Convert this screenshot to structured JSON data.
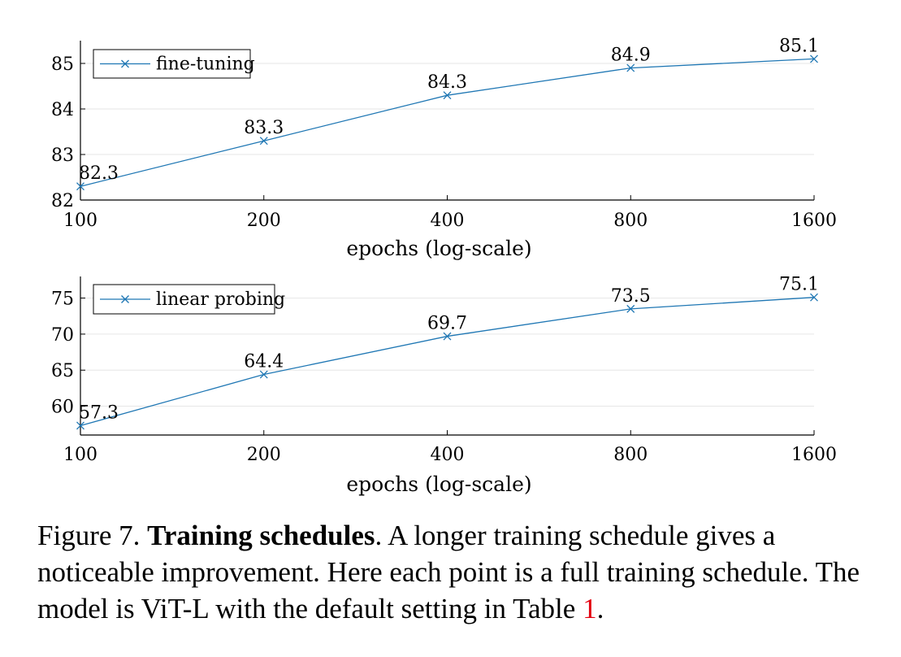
{
  "chart_data": [
    {
      "type": "line",
      "x": [
        100,
        200,
        400,
        800,
        1600
      ],
      "x_ticks": [
        "100",
        "200",
        "400",
        "800",
        "1600"
      ],
      "xscale": "log",
      "xlabel": "epochs (log-scale)",
      "ylabel": "",
      "ylim": [
        82,
        85.5
      ],
      "y_ticks": [
        "82",
        "83",
        "84",
        "85"
      ],
      "grid": "horizontal",
      "legend": "top-left",
      "series": [
        {
          "name": "fine-tuning",
          "values": [
            82.3,
            83.3,
            84.3,
            84.9,
            85.1
          ],
          "data_labels": [
            "82.3",
            "83.3",
            "84.3",
            "84.9",
            "85.1"
          ]
        }
      ]
    },
    {
      "type": "line",
      "x": [
        100,
        200,
        400,
        800,
        1600
      ],
      "x_ticks": [
        "100",
        "200",
        "400",
        "800",
        "1600"
      ],
      "xscale": "log",
      "xlabel": "epochs (log-scale)",
      "ylabel": "",
      "ylim": [
        56,
        78
      ],
      "y_ticks": [
        "60",
        "65",
        "70",
        "75"
      ],
      "grid": "horizontal",
      "legend": "top-left",
      "series": [
        {
          "name": "linear probing",
          "values": [
            57.3,
            64.4,
            69.7,
            73.5,
            75.1
          ],
          "data_labels": [
            "57.3",
            "64.4",
            "69.7",
            "73.5",
            "75.1"
          ]
        }
      ]
    }
  ],
  "colors": {
    "series": "#1f77b4",
    "grid": "#e6e6e6",
    "axis": "#000000",
    "ref": "#e3000f"
  },
  "caption": {
    "prefix": "Figure 7. ",
    "bold": "Training schedules",
    "text": ". A longer training schedule gives a noticeable improvement. Here each point is a full training schedule. The model is ViT-L with the default setting in Table ",
    "ref": "1",
    "suffix": "."
  }
}
